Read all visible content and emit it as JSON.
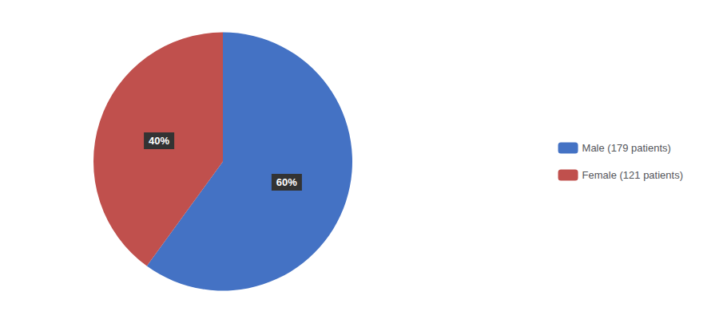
{
  "chart_data": {
    "type": "pie",
    "categories": [
      "Male (179 patients)",
      "Female (121 patients)"
    ],
    "values": [
      60,
      40
    ],
    "value_labels": [
      "60%",
      "40%"
    ],
    "colors": [
      "#4472C4",
      "#C0504D"
    ],
    "data_labels": true,
    "legend": "right"
  }
}
